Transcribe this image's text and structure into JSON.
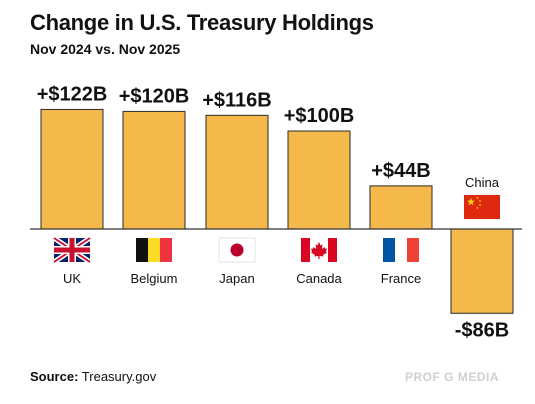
{
  "title": "Change in U.S. Treasury Holdings",
  "subtitle": "Nov 2024 vs. Nov 2025",
  "source_label": "Source:",
  "source_value": "Treasury.gov",
  "brand": "PROF G MEDIA",
  "colors": {
    "bar": "#f5b94b",
    "bar_stroke": "#2a2a2a",
    "axis": "#333333"
  },
  "chart_data": {
    "type": "bar",
    "title": "Change in U.S. Treasury Holdings",
    "subtitle": "Nov 2024 vs. Nov 2025",
    "categories": [
      "UK",
      "Belgium",
      "Japan",
      "Canada",
      "France",
      "China"
    ],
    "values": [
      122,
      120,
      116,
      100,
      44,
      -86
    ],
    "value_labels": [
      "+$122B",
      "+$120B",
      "+$116B",
      "+$100B",
      "+$44B",
      "-$86B"
    ],
    "flags": [
      "uk-flag",
      "belgium-flag",
      "japan-flag",
      "canada-flag",
      "france-flag",
      "china-flag"
    ],
    "unit": "$B",
    "ylim": [
      -86,
      122
    ],
    "grid": false,
    "legend": "none"
  }
}
